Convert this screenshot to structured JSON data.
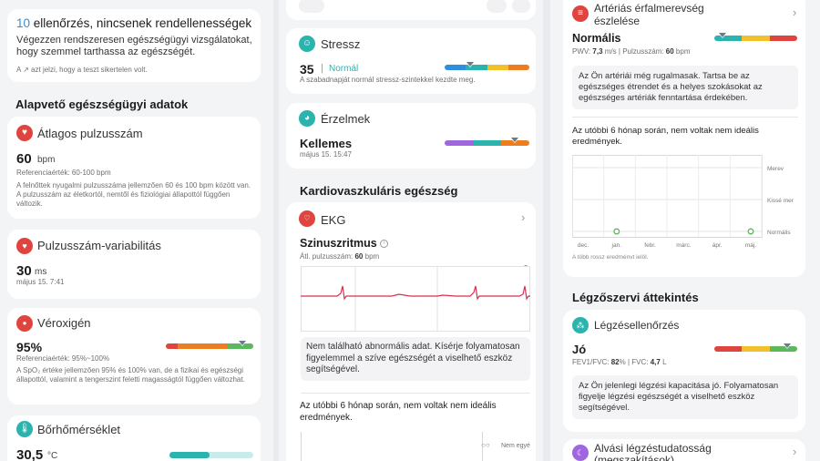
{
  "col1": {
    "checks": {
      "count": "10",
      "title_rest": " ellenőrzés, nincsenek rendellenességek",
      "desc": "Végezzen rendszeresen egészségügyi vizsgálatokat, hogy szemmel tarthassa az egészségét.",
      "note": "A ↗ azt jelzi, hogy a teszt sikertelen volt."
    },
    "section_title": "Alapvető egészségügyi adatok",
    "heart_rate": {
      "title": "Átlagos pulzusszám",
      "value": "60",
      "unit": "bpm",
      "reference": "Referenciaérték: 60-100 bpm",
      "desc": "A felnőttek nyugalmi pulzusszáma jellemzően 60 és 100 bpm között van. A pulzusszám az életkortól, nemtől és fiziológiai állapottól függően változik."
    },
    "hrv": {
      "title": "Pulzusszám-variabilitás",
      "value": "30",
      "unit": "ms",
      "date": "május 15. 7:41"
    },
    "spo2": {
      "title": "Véroxigén",
      "value": "95%",
      "reference": "Referenciaérték: 95%~100%",
      "desc": "A SpO₂ értéke jellemzően 95% és 100% van, de a fizikai és egészségi állapottól, valamint a tengerszint feletti magasságtól függően változhat.",
      "level": 0.88
    },
    "skin_temp": {
      "title": "Bőrhőmérséklet",
      "value": "30,5",
      "unit": "°C",
      "level": 0.48
    }
  },
  "col2": {
    "stress": {
      "title": "Stressz",
      "value": "35",
      "separator": "|",
      "status": "Normál",
      "desc": "A szabadnapját normál stressz-szintekkel kezdte meg.",
      "level": 0.3
    },
    "emotion": {
      "title": "Érzelmek",
      "value": "Kellemes",
      "date": "május 15. 15:47",
      "level": 0.83
    },
    "section_title": "Kardiovaszkuláris egészség",
    "ekg": {
      "title": "EKG",
      "result": "Szinuszritmus",
      "avg_label": "Átl. pulzusszám:",
      "avg_value": "60",
      "avg_unit": "bpm",
      "info": "Nem található abnormális adat. Kísérje folyamatosan figyelemmel a szíve egészségét a viselhető eszköz segítségével.",
      "sixmonth": "Az utóbbi 6 hónap során, nem voltak nem ideális eredmények.",
      "legend_label": "Nem egyé"
    }
  },
  "col3": {
    "artery": {
      "title": "Artériás érfalmerevség észlelése",
      "status": "Normális",
      "pwv_label": "PWV:",
      "pwv_value": "7,3",
      "pwv_unit": "m/s",
      "separator": "|",
      "hr_label": "Pulzusszám:",
      "hr_value": "60",
      "hr_unit": "bpm",
      "info": "Az Ön artériái még rugalmasak. Tartsa be az egészséges étrendet és a helyes szokásokat az egészséges artériák fenntartása érdekében.",
      "sixmonth": "Az utóbbi 6 hónap során, nem voltak nem ideális eredmények.",
      "level": 0.1,
      "chart_legend": [
        "Merev",
        "Kissé mer",
        "Normális"
      ],
      "chart_months": [
        "dec.",
        "jan.",
        "febr.",
        "márc.",
        "ápr.",
        "máj."
      ],
      "chart_note": "A több rossz eredményt jelöl.",
      "points": [
        {
          "month": "jan.",
          "level": "Normális"
        },
        {
          "month": "máj.",
          "level": "Normális"
        }
      ]
    },
    "section_title": "Légzőszervi áttekintés",
    "breath": {
      "title": "Légzésellenőrzés",
      "status": "Jó",
      "fev_label": "FEV1/FVC:",
      "fev_value": "82",
      "fev_unit": "%",
      "separator": "|",
      "fvc_label": "FVC:",
      "fvc_value": "4,7",
      "fvc_unit": "L",
      "info": "Az Ön jelenlegi légzési kapacitása jó. Folyamatosan figyelje légzési egészségét a viselhető eszköz segítségével.",
      "level": 0.88
    },
    "sleep": {
      "title": "Alvási légzéstudatosság (megszakítások)"
    }
  },
  "colors": {
    "red": "#e0443e",
    "orange": "#ee7d1f",
    "yellow": "#f2c02b",
    "green": "#5cb85c",
    "teal": "#2bb3ad",
    "blue": "#2f8fdf",
    "purple": "#a066e0",
    "ekg_line": "#d6324e"
  }
}
